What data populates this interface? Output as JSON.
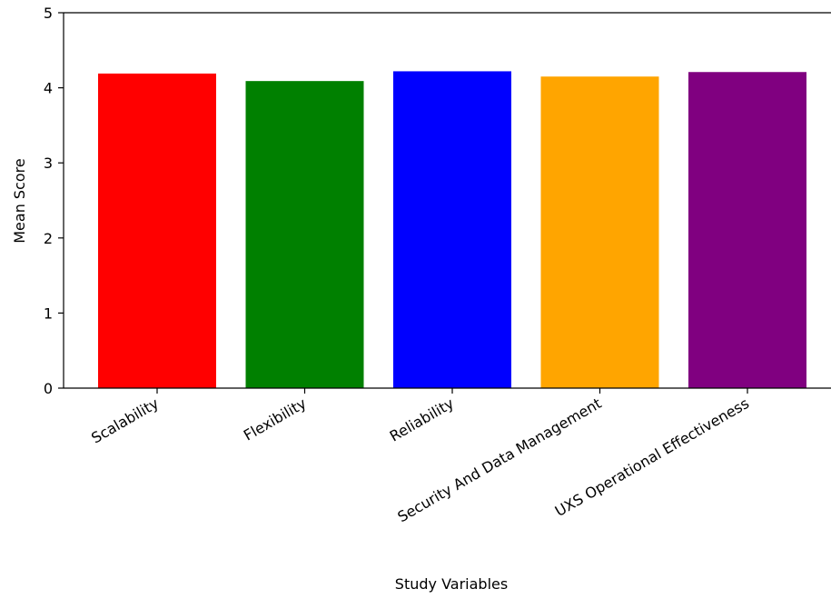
{
  "chart_data": {
    "type": "bar",
    "title": "",
    "xlabel": "Study Variables",
    "ylabel": "Mean Score",
    "ylim": [
      0,
      5
    ],
    "yticks": [
      "0",
      "1",
      "2",
      "3",
      "4",
      "5"
    ],
    "categories": [
      "Scalability",
      "Flexibility",
      "Reliability",
      "Security And Data Management",
      "UXS Operational Effectiveness"
    ],
    "values": [
      4.19,
      4.09,
      4.22,
      4.15,
      4.21
    ],
    "colors": [
      "#ff0000",
      "#008000",
      "#0000ff",
      "#ffa500",
      "#800080"
    ],
    "grid": false
  }
}
